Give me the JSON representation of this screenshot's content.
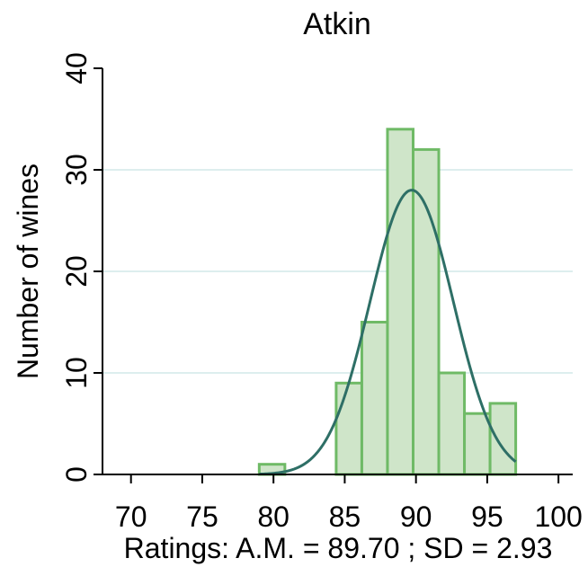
{
  "chart_data": {
    "type": "bar",
    "title": "Atkin",
    "xlabel": "Ratings: A.M. = 89.70 ; SD = 2.93",
    "ylabel": "Number of wines",
    "xlim": [
      68,
      101
    ],
    "ylim": [
      0,
      40
    ],
    "x_ticks": [
      70,
      75,
      80,
      85,
      90,
      95,
      100
    ],
    "y_ticks": [
      0,
      10,
      20,
      30,
      40
    ],
    "grid": true,
    "bin_width": 1.8,
    "bins": [
      {
        "start": 79.0,
        "value": 1
      },
      {
        "start": 84.4,
        "value": 9
      },
      {
        "start": 86.2,
        "value": 15
      },
      {
        "start": 88.0,
        "value": 34
      },
      {
        "start": 89.8,
        "value": 32
      },
      {
        "start": 91.6,
        "value": 10
      },
      {
        "start": 93.4,
        "value": 6
      },
      {
        "start": 95.2,
        "value": 7
      }
    ],
    "normal_curve": {
      "mean": 89.7,
      "sd": 2.93,
      "peak": 28.0,
      "x_range": [
        79.0,
        97.0
      ]
    },
    "colors": {
      "bar_fill": "#cfe5c9",
      "bar_stroke": "#6fba66",
      "curve": "#2e6f66",
      "grid": "#ddeeee"
    }
  }
}
